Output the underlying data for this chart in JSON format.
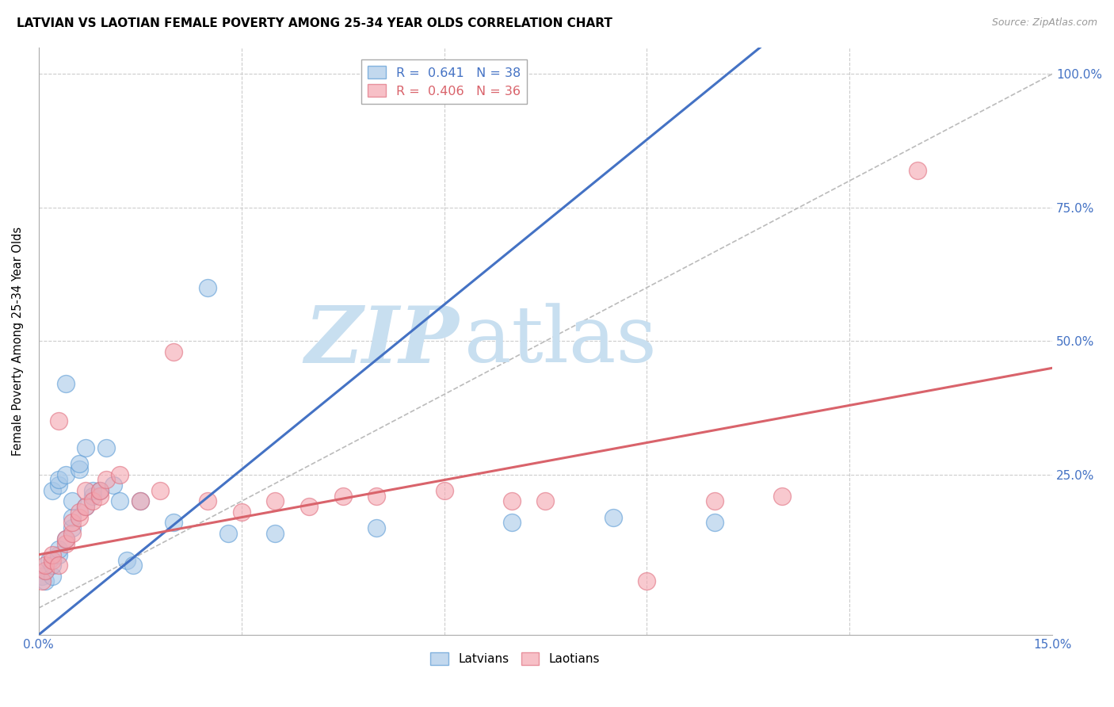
{
  "title": "LATVIAN VS LAOTIAN FEMALE POVERTY AMONG 25-34 YEAR OLDS CORRELATION CHART",
  "source": "Source: ZipAtlas.com",
  "ylabel": "Female Poverty Among 25-34 Year Olds",
  "xlim": [
    0.0,
    0.15
  ],
  "ylim": [
    -0.05,
    1.05
  ],
  "latvian_color": "#a8c8e8",
  "latvian_edge": "#5b9bd5",
  "laotian_color": "#f4a6b0",
  "laotian_edge": "#e07080",
  "line_blue": "#4472c4",
  "line_pink": "#d9636b",
  "latvian_R": 0.641,
  "latvian_N": 38,
  "laotian_R": 0.406,
  "laotian_N": 36,
  "axis_label_color": "#4472c4",
  "grid_color": "#cccccc",
  "watermark_zip_color": "#c8dff0",
  "watermark_atlas_color": "#c8dff0",
  "legend_latvians": "Latvians",
  "legend_laotians": "Laotians",
  "latvian_x": [
    0.0005,
    0.001,
    0.001,
    0.0015,
    0.002,
    0.002,
    0.002,
    0.003,
    0.003,
    0.003,
    0.003,
    0.004,
    0.004,
    0.004,
    0.005,
    0.005,
    0.005,
    0.006,
    0.006,
    0.007,
    0.007,
    0.008,
    0.008,
    0.009,
    0.01,
    0.011,
    0.012,
    0.013,
    0.014,
    0.015,
    0.02,
    0.025,
    0.028,
    0.035,
    0.05,
    0.07,
    0.085,
    0.1
  ],
  "latvian_y": [
    0.06,
    0.05,
    0.07,
    0.09,
    0.06,
    0.08,
    0.22,
    0.1,
    0.11,
    0.23,
    0.24,
    0.13,
    0.25,
    0.42,
    0.15,
    0.17,
    0.2,
    0.26,
    0.27,
    0.19,
    0.3,
    0.21,
    0.22,
    0.22,
    0.3,
    0.23,
    0.2,
    0.09,
    0.08,
    0.2,
    0.16,
    0.6,
    0.14,
    0.14,
    0.15,
    0.16,
    0.17,
    0.16
  ],
  "laotian_x": [
    0.0005,
    0.001,
    0.001,
    0.002,
    0.002,
    0.003,
    0.003,
    0.004,
    0.004,
    0.005,
    0.005,
    0.006,
    0.006,
    0.007,
    0.007,
    0.008,
    0.009,
    0.009,
    0.01,
    0.012,
    0.015,
    0.018,
    0.02,
    0.025,
    0.03,
    0.035,
    0.04,
    0.045,
    0.05,
    0.06,
    0.07,
    0.075,
    0.09,
    0.1,
    0.11,
    0.13
  ],
  "laotian_y": [
    0.05,
    0.07,
    0.08,
    0.09,
    0.1,
    0.08,
    0.35,
    0.12,
    0.13,
    0.14,
    0.16,
    0.17,
    0.18,
    0.19,
    0.22,
    0.2,
    0.21,
    0.22,
    0.24,
    0.25,
    0.2,
    0.22,
    0.48,
    0.2,
    0.18,
    0.2,
    0.19,
    0.21,
    0.21,
    0.22,
    0.2,
    0.2,
    0.05,
    0.2,
    0.21,
    0.82
  ]
}
